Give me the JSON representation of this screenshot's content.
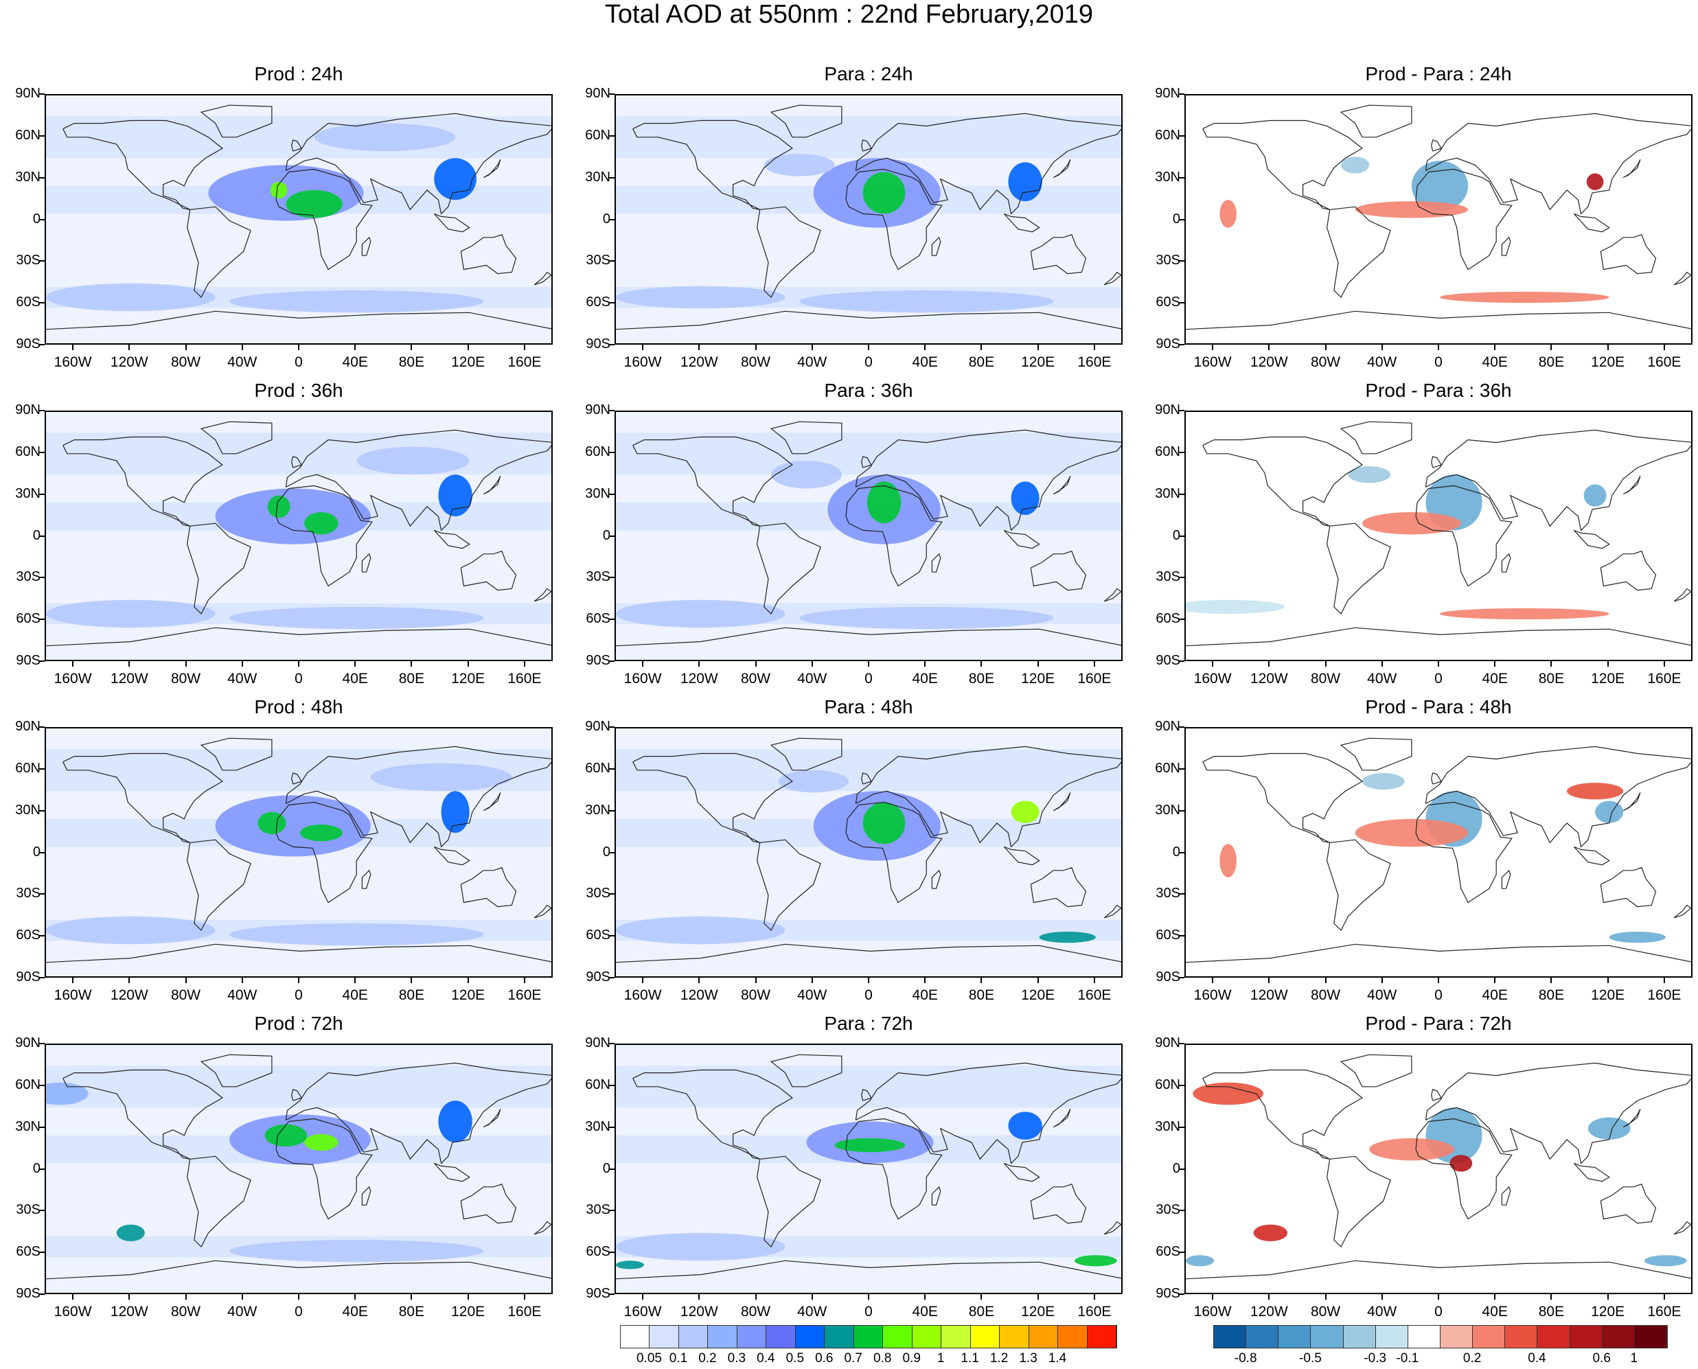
{
  "title": "Total AOD at 550nm : 22nd February,2019",
  "panels": [
    {
      "title": "Prod : 24h",
      "kind": "field",
      "row": 0,
      "col": 0,
      "blobs": [
        {
          "lon": -10,
          "lat": 20,
          "rx": 55,
          "ry": 20,
          "level": 4
        },
        {
          "lon": 10,
          "lat": 12,
          "rx": 20,
          "ry": 10,
          "level": 8
        },
        {
          "lon": -15,
          "lat": 22,
          "rx": 6,
          "ry": 6,
          "level": 9
        },
        {
          "lon": 110,
          "lat": 30,
          "rx": 15,
          "ry": 15,
          "level": 6
        },
        {
          "lon": -120,
          "lat": -55,
          "rx": 60,
          "ry": 10,
          "level": 2
        },
        {
          "lon": 40,
          "lat": -58,
          "rx": 90,
          "ry": 8,
          "level": 2
        },
        {
          "lon": 60,
          "lat": 60,
          "rx": 50,
          "ry": 10,
          "level": 2
        }
      ]
    },
    {
      "title": "Para : 24h",
      "kind": "field",
      "row": 0,
      "col": 1,
      "blobs": [
        {
          "lon": 5,
          "lat": 20,
          "rx": 45,
          "ry": 25,
          "level": 4
        },
        {
          "lon": 10,
          "lat": 20,
          "rx": 15,
          "ry": 15,
          "level": 8
        },
        {
          "lon": 110,
          "lat": 28,
          "rx": 12,
          "ry": 14,
          "level": 6
        },
        {
          "lon": -50,
          "lat": 40,
          "rx": 25,
          "ry": 8,
          "level": 2
        },
        {
          "lon": -120,
          "lat": -55,
          "rx": 60,
          "ry": 8,
          "level": 2
        },
        {
          "lon": 40,
          "lat": -58,
          "rx": 90,
          "ry": 8,
          "level": 2
        }
      ]
    },
    {
      "title": "Prod - Para : 24h",
      "kind": "diff",
      "row": 0,
      "col": 2,
      "blobs": [
        {
          "lon": 0,
          "lat": 25,
          "rx": 20,
          "ry": 18,
          "level": -3
        },
        {
          "lon": -20,
          "lat": 8,
          "rx": 40,
          "ry": 6,
          "level": 2
        },
        {
          "lon": 110,
          "lat": 28,
          "rx": 6,
          "ry": 6,
          "level": 5
        },
        {
          "lon": -60,
          "lat": 40,
          "rx": 10,
          "ry": 6,
          "level": -2
        },
        {
          "lon": -150,
          "lat": 5,
          "rx": 6,
          "ry": 10,
          "level": 2
        },
        {
          "lon": 60,
          "lat": -55,
          "rx": 60,
          "ry": 4,
          "level": 2
        }
      ]
    },
    {
      "title": "Prod : 36h",
      "kind": "field",
      "row": 1,
      "col": 0,
      "blobs": [
        {
          "lon": -5,
          "lat": 15,
          "rx": 55,
          "ry": 20,
          "level": 4
        },
        {
          "lon": -15,
          "lat": 22,
          "rx": 8,
          "ry": 8,
          "level": 8
        },
        {
          "lon": 15,
          "lat": 10,
          "rx": 12,
          "ry": 8,
          "level": 8
        },
        {
          "lon": 110,
          "lat": 30,
          "rx": 12,
          "ry": 15,
          "level": 6
        },
        {
          "lon": -120,
          "lat": -55,
          "rx": 60,
          "ry": 10,
          "level": 2
        },
        {
          "lon": 40,
          "lat": -58,
          "rx": 90,
          "ry": 8,
          "level": 2
        },
        {
          "lon": 80,
          "lat": 55,
          "rx": 40,
          "ry": 10,
          "level": 2
        }
      ]
    },
    {
      "title": "Para : 36h",
      "kind": "field",
      "row": 1,
      "col": 1,
      "blobs": [
        {
          "lon": 10,
          "lat": 20,
          "rx": 40,
          "ry": 25,
          "level": 4
        },
        {
          "lon": 10,
          "lat": 25,
          "rx": 12,
          "ry": 15,
          "level": 8
        },
        {
          "lon": 110,
          "lat": 28,
          "rx": 10,
          "ry": 12,
          "level": 6
        },
        {
          "lon": -45,
          "lat": 45,
          "rx": 25,
          "ry": 10,
          "level": 2
        },
        {
          "lon": -120,
          "lat": -55,
          "rx": 60,
          "ry": 10,
          "level": 2
        },
        {
          "lon": 40,
          "lat": -58,
          "rx": 90,
          "ry": 8,
          "level": 2
        }
      ]
    },
    {
      "title": "Prod - Para : 36h",
      "kind": "diff",
      "row": 1,
      "col": 2,
      "blobs": [
        {
          "lon": 10,
          "lat": 25,
          "rx": 20,
          "ry": 20,
          "level": -3
        },
        {
          "lon": -20,
          "lat": 10,
          "rx": 35,
          "ry": 8,
          "level": 2
        },
        {
          "lon": 110,
          "lat": 30,
          "rx": 8,
          "ry": 8,
          "level": -3
        },
        {
          "lon": -50,
          "lat": 45,
          "rx": 15,
          "ry": 6,
          "level": -2
        },
        {
          "lon": -150,
          "lat": -50,
          "rx": 40,
          "ry": 5,
          "level": -1
        },
        {
          "lon": 60,
          "lat": -55,
          "rx": 60,
          "ry": 4,
          "level": 2
        }
      ]
    },
    {
      "title": "Prod : 48h",
      "kind": "field",
      "row": 2,
      "col": 0,
      "blobs": [
        {
          "lon": -5,
          "lat": 20,
          "rx": 55,
          "ry": 22,
          "level": 4
        },
        {
          "lon": -20,
          "lat": 22,
          "rx": 10,
          "ry": 8,
          "level": 8
        },
        {
          "lon": 15,
          "lat": 15,
          "rx": 15,
          "ry": 6,
          "level": 8
        },
        {
          "lon": 110,
          "lat": 30,
          "rx": 10,
          "ry": 15,
          "level": 6
        },
        {
          "lon": -120,
          "lat": -55,
          "rx": 60,
          "ry": 10,
          "level": 2
        },
        {
          "lon": 40,
          "lat": -58,
          "rx": 90,
          "ry": 8,
          "level": 2
        },
        {
          "lon": 100,
          "lat": 55,
          "rx": 50,
          "ry": 10,
          "level": 2
        }
      ]
    },
    {
      "title": "Para : 48h",
      "kind": "field",
      "row": 2,
      "col": 1,
      "blobs": [
        {
          "lon": 5,
          "lat": 20,
          "rx": 45,
          "ry": 25,
          "level": 4
        },
        {
          "lon": 10,
          "lat": 22,
          "rx": 15,
          "ry": 15,
          "level": 8
        },
        {
          "lon": 110,
          "lat": 30,
          "rx": 10,
          "ry": 8,
          "level": 10
        },
        {
          "lon": -40,
          "lat": 52,
          "rx": 25,
          "ry": 8,
          "level": 2
        },
        {
          "lon": 140,
          "lat": -60,
          "rx": 20,
          "ry": 4,
          "level": 7
        },
        {
          "lon": -120,
          "lat": -55,
          "rx": 60,
          "ry": 10,
          "level": 2
        }
      ]
    },
    {
      "title": "Prod - Para : 48h",
      "kind": "diff",
      "row": 2,
      "col": 2,
      "blobs": [
        {
          "lon": 10,
          "lat": 25,
          "rx": 20,
          "ry": 20,
          "level": -3
        },
        {
          "lon": -20,
          "lat": 15,
          "rx": 40,
          "ry": 10,
          "level": 2
        },
        {
          "lon": 120,
          "lat": 30,
          "rx": 10,
          "ry": 8,
          "level": -3
        },
        {
          "lon": 110,
          "lat": 45,
          "rx": 20,
          "ry": 6,
          "level": 3
        },
        {
          "lon": -40,
          "lat": 52,
          "rx": 15,
          "ry": 6,
          "level": -2
        },
        {
          "lon": -150,
          "lat": -5,
          "rx": 6,
          "ry": 12,
          "level": 2
        },
        {
          "lon": 140,
          "lat": -60,
          "rx": 20,
          "ry": 4,
          "level": -3
        }
      ]
    },
    {
      "title": "Prod : 72h",
      "kind": "field",
      "row": 3,
      "col": 0,
      "blobs": [
        {
          "lon": 0,
          "lat": 22,
          "rx": 50,
          "ry": 18,
          "level": 4
        },
        {
          "lon": -10,
          "lat": 25,
          "rx": 15,
          "ry": 8,
          "level": 8
        },
        {
          "lon": 15,
          "lat": 20,
          "rx": 12,
          "ry": 6,
          "level": 9
        },
        {
          "lon": 110,
          "lat": 35,
          "rx": 12,
          "ry": 15,
          "level": 6
        },
        {
          "lon": -120,
          "lat": -45,
          "rx": 10,
          "ry": 6,
          "level": 7
        },
        {
          "lon": -170,
          "lat": 55,
          "rx": 20,
          "ry": 8,
          "level": 3
        },
        {
          "lon": 40,
          "lat": -58,
          "rx": 90,
          "ry": 8,
          "level": 2
        }
      ]
    },
    {
      "title": "Para : 72h",
      "kind": "field",
      "row": 3,
      "col": 1,
      "blobs": [
        {
          "lon": 0,
          "lat": 20,
          "rx": 45,
          "ry": 15,
          "level": 4
        },
        {
          "lon": 0,
          "lat": 18,
          "rx": 25,
          "ry": 5,
          "level": 8
        },
        {
          "lon": 110,
          "lat": 32,
          "rx": 12,
          "ry": 10,
          "level": 6
        },
        {
          "lon": -170,
          "lat": -68,
          "rx": 10,
          "ry": 3,
          "level": 7
        },
        {
          "lon": 160,
          "lat": -65,
          "rx": 15,
          "ry": 4,
          "level": 8
        },
        {
          "lon": -120,
          "lat": -55,
          "rx": 60,
          "ry": 10,
          "level": 2
        }
      ]
    },
    {
      "title": "Prod - Para : 72h",
      "kind": "diff",
      "row": 3,
      "col": 2,
      "blobs": [
        {
          "lon": 10,
          "lat": 25,
          "rx": 20,
          "ry": 20,
          "level": -3
        },
        {
          "lon": 15,
          "lat": 5,
          "rx": 8,
          "ry": 6,
          "level": 5
        },
        {
          "lon": -20,
          "lat": 15,
          "rx": 30,
          "ry": 8,
          "level": 2
        },
        {
          "lon": 120,
          "lat": 30,
          "rx": 15,
          "ry": 8,
          "level": -3
        },
        {
          "lon": -150,
          "lat": 55,
          "rx": 25,
          "ry": 8,
          "level": 3
        },
        {
          "lon": -120,
          "lat": -45,
          "rx": 12,
          "ry": 6,
          "level": 4
        },
        {
          "lon": 160,
          "lat": -65,
          "rx": 15,
          "ry": 4,
          "level": -3
        },
        {
          "lon": -170,
          "lat": -65,
          "rx": 10,
          "ry": 4,
          "level": -3
        }
      ]
    }
  ],
  "lat_ticks": [
    "90N",
    "60N",
    "30N",
    "0",
    "30S",
    "60S",
    "90S"
  ],
  "lat_values": [
    90,
    60,
    30,
    0,
    -30,
    -60,
    -90
  ],
  "lon_ticks": [
    "160W",
    "120W",
    "80W",
    "40W",
    "0",
    "40E",
    "80E",
    "120E",
    "160E"
  ],
  "lon_values": [
    -160,
    -120,
    -80,
    -40,
    0,
    40,
    80,
    120,
    160
  ],
  "field_colorbar": {
    "colors": [
      "#ffffff",
      "#d6e2ff",
      "#b5c9ff",
      "#8eb2ff",
      "#7f96ff",
      "#6370f7",
      "#0063ff",
      "#009696",
      "#00c633",
      "#63ff00",
      "#96ff00",
      "#c6ff33",
      "#ffff00",
      "#ffc600",
      "#ffa000",
      "#ff7c00",
      "#ff1900"
    ],
    "labels": [
      "0.05",
      "0.1",
      "0.2",
      "0.3",
      "0.4",
      "0.5",
      "0.6",
      "0.7",
      "0.8",
      "0.9",
      "1",
      "1.1",
      "1.2",
      "1.3",
      "1.4"
    ]
  },
  "diff_colorbar": {
    "colors": [
      "#08589e",
      "#2b7bba",
      "#4a98c9",
      "#6baed6",
      "#9ecae1",
      "#c6e4f0",
      "#ffffff",
      "#f6b4a7",
      "#f4826e",
      "#e8513d",
      "#d32a26",
      "#b4161b",
      "#8c0d14",
      "#67000d"
    ],
    "labels": [
      "-0.8",
      "-0.5",
      "-0.3",
      "-0.1",
      "0.2",
      "0.4",
      "0.6",
      "1"
    ]
  }
}
